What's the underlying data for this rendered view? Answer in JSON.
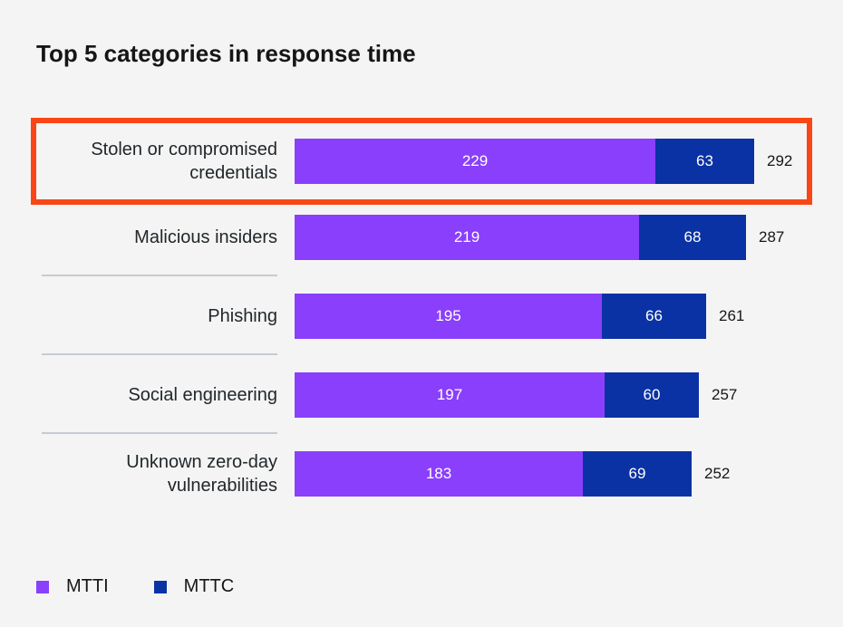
{
  "title": "Top 5 categories in response time",
  "colors": {
    "mtti": "#8a3ffc",
    "mttc": "#0a32a4",
    "highlight_border": "#fa4616",
    "background": "#f4f4f4",
    "divider": "#c6cbd2",
    "text": "#161616"
  },
  "chart_data": {
    "type": "bar",
    "orientation": "horizontal",
    "stacked": true,
    "title": "Top 5 categories in response time",
    "categories": [
      "Stolen or compromised credentials",
      "Malicious insiders",
      "Phishing",
      "Social engineering",
      "Unknown zero-day vulnerabilities"
    ],
    "series": [
      {
        "name": "MTTI",
        "color": "#8a3ffc",
        "values": [
          229,
          219,
          195,
          197,
          183
        ]
      },
      {
        "name": "MTTC",
        "color": "#0a32a4",
        "values": [
          63,
          68,
          66,
          60,
          69
        ]
      }
    ],
    "totals": [
      292,
      287,
      261,
      257,
      252
    ],
    "xlim": [
      0,
      292
    ],
    "grid": false,
    "legend_position": "bottom-left",
    "highlighted_row_index": 0,
    "value_labels": "inside-segments",
    "total_labels": "right-of-bar"
  },
  "legend": {
    "items": [
      {
        "label": "MTTI"
      },
      {
        "label": "MTTC"
      }
    ]
  }
}
